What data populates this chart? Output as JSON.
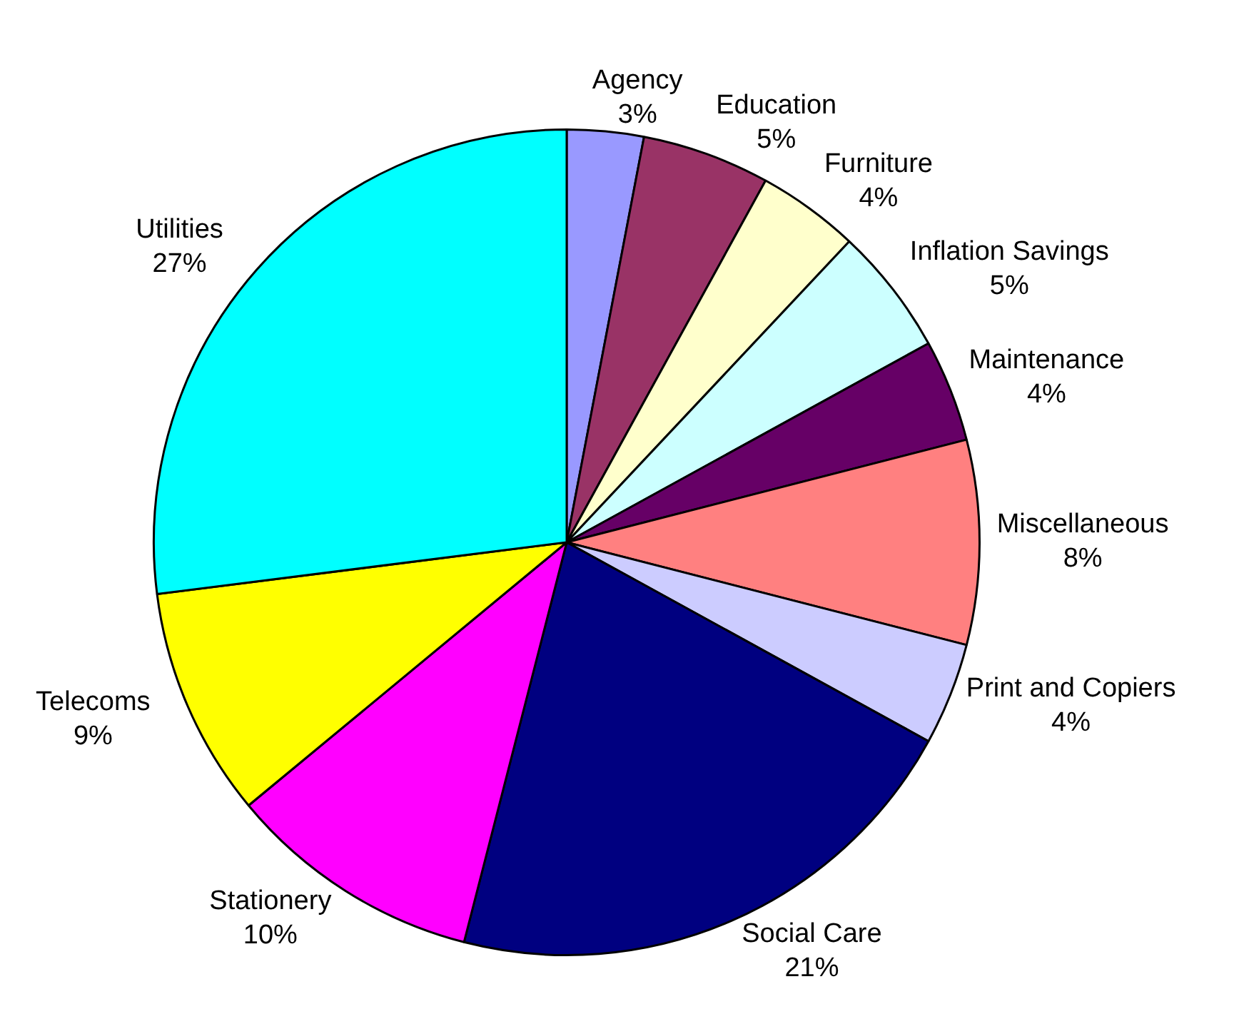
{
  "chart_data": {
    "type": "pie",
    "categories": [
      "Agency",
      "Education",
      "Furniture",
      "Inflation Savings",
      "Maintenance",
      "Miscellaneous",
      "Print and Copiers",
      "Social Care",
      "Stationery",
      "Telecoms",
      "Utilities"
    ],
    "values": [
      3,
      5,
      4,
      5,
      4,
      8,
      4,
      21,
      10,
      9,
      27
    ],
    "value_labels": [
      "3%",
      "5%",
      "4%",
      "5%",
      "4%",
      "8%",
      "4%",
      "21%",
      "10%",
      "9%",
      "27%"
    ],
    "colors": [
      "#9999ff",
      "#993366",
      "#ffffcc",
      "#ccffff",
      "#660066",
      "#ff8080",
      "#ccccff",
      "#000080",
      "#ff00ff",
      "#ffff00",
      "#00ffff"
    ],
    "legend": false
  }
}
